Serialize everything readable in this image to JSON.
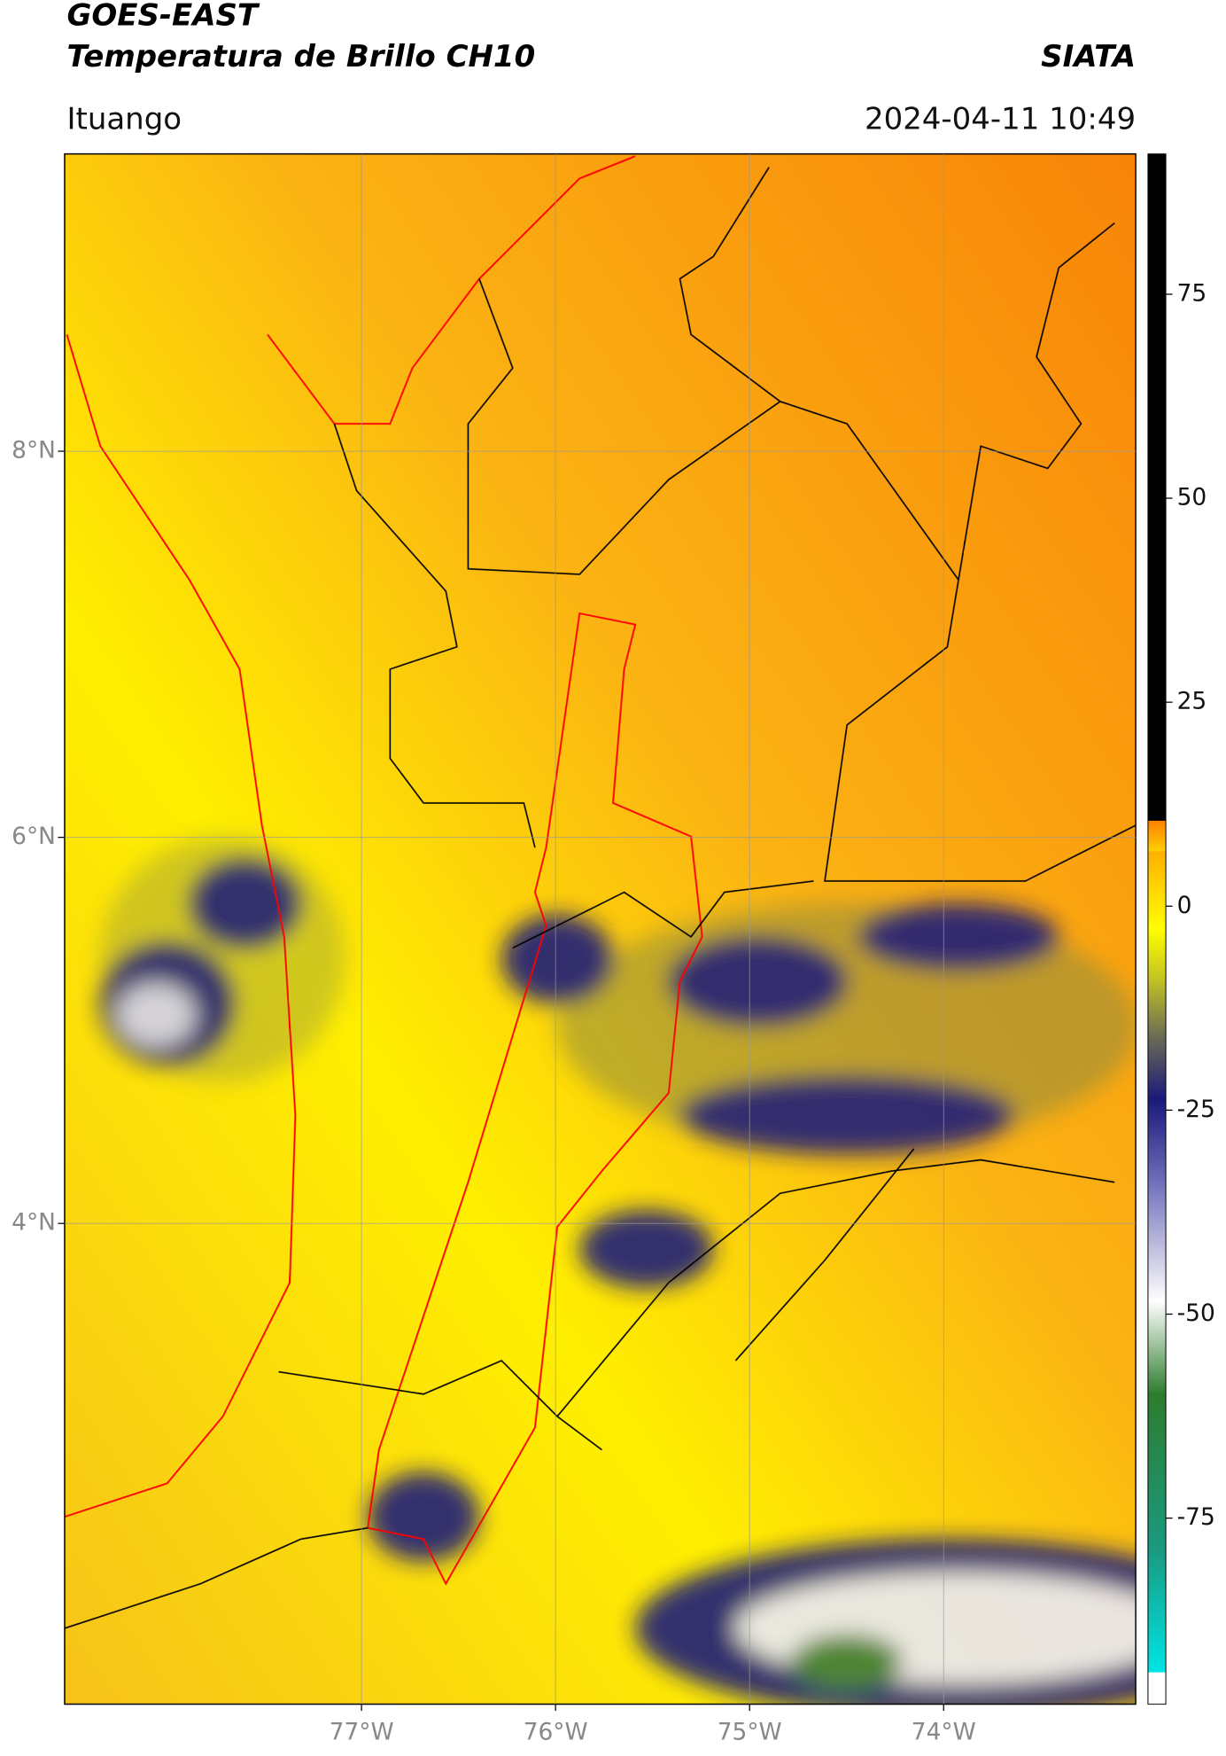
{
  "header": {
    "title": "GOES-EAST",
    "subtitle": "Temperatura de Brillo CH10",
    "brand": "SIATA",
    "location": "Ituango",
    "timestamp": "2024-04-11 10:49"
  },
  "map": {
    "xlim": [
      -78.53,
      -73.01
    ],
    "ylim": [
      1.51,
      9.54
    ],
    "xticks": [
      {
        "value": -77,
        "label": "77°W"
      },
      {
        "value": -76,
        "label": "76°W"
      },
      {
        "value": -75,
        "label": "75°W"
      },
      {
        "value": -74,
        "label": "74°W"
      }
    ],
    "yticks": [
      {
        "value": 8,
        "label": "8°N"
      },
      {
        "value": 6,
        "label": "6°N"
      },
      {
        "value": 4,
        "label": "4°N"
      }
    ],
    "grid": true
  },
  "colorbar": {
    "lim": [
      -97.8,
      92.2
    ],
    "ticks": [
      75,
      50,
      25,
      0,
      -25,
      -50,
      -75
    ]
  }
}
